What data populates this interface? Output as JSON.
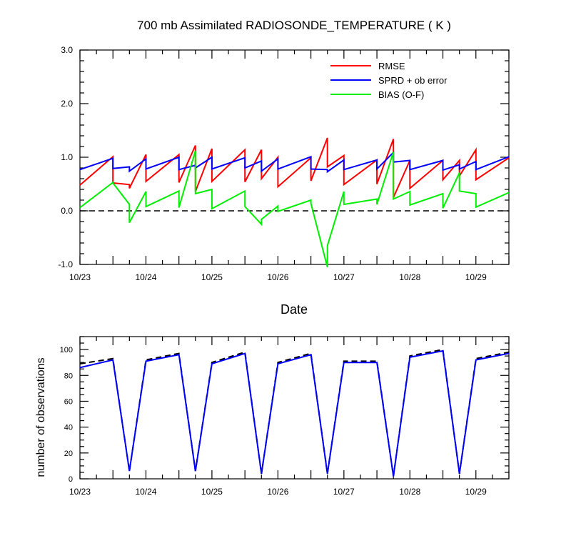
{
  "chart_data": [
    {
      "type": "line",
      "title": "700 mb Assimilated RADIOSONDE_TEMPERATURE ( K )",
      "xlabel": "Date",
      "ylabel": "",
      "xlim": [
        0,
        6.5
      ],
      "ylim": [
        -1.0,
        3.0
      ],
      "yticks": [
        "-1.0",
        "0.0",
        "1.0",
        "2.0",
        "3.0"
      ],
      "ytick_values": [
        -1.0,
        0.0,
        1.0,
        2.0,
        3.0
      ],
      "xtick_labels": [
        "10/23",
        "10/24",
        "10/25",
        "10/26",
        "10/27",
        "10/28",
        "10/29"
      ],
      "xtick_values": [
        0,
        1,
        2,
        3,
        4,
        5,
        6
      ],
      "zero_line": "dashed",
      "legend_position": "top-right",
      "series": [
        {
          "name": "RMSE",
          "color": "#ff0000",
          "x": [
            0,
            0.5,
            0.5,
            0.75,
            0.75,
            1,
            1,
            1.5,
            1.5,
            1.75,
            1.75,
            2,
            2,
            2.5,
            2.5,
            2.75,
            2.75,
            3,
            3,
            3.5,
            3.5,
            3.75,
            3.75,
            4,
            4,
            4.5,
            4.5,
            4.75,
            4.75,
            5,
            5,
            5.5,
            5.5,
            5.75,
            5.75,
            6,
            6,
            6.5
          ],
          "y": [
            0.48,
            1.01,
            0.52,
            0.49,
            0.42,
            1.05,
            0.55,
            1.05,
            0.53,
            1.22,
            0.36,
            1.16,
            0.55,
            1.14,
            0.54,
            1.14,
            0.6,
            1.0,
            0.45,
            0.99,
            0.56,
            1.36,
            0.82,
            1.03,
            0.49,
            0.95,
            0.5,
            1.34,
            0.25,
            0.94,
            0.42,
            0.94,
            0.58,
            0.94,
            0.65,
            1.14,
            0.58,
            0.99
          ]
        },
        {
          "name": "SPRD + ob error",
          "color": "#0000ff",
          "x": [
            0,
            0.5,
            0.5,
            0.75,
            0.75,
            1,
            1,
            1.5,
            1.5,
            1.75,
            1.75,
            2,
            2,
            2.5,
            2.5,
            2.75,
            2.75,
            3,
            3,
            3.5,
            3.5,
            3.75,
            3.75,
            4,
            4,
            4.5,
            4.5,
            4.75,
            4.75,
            5,
            5,
            5.5,
            5.5,
            5.75,
            5.75,
            6,
            6,
            6.5
          ],
          "y": [
            0.77,
            0.98,
            0.79,
            0.82,
            0.74,
            0.97,
            0.78,
            1.0,
            0.77,
            0.85,
            0.8,
            1.0,
            0.78,
            0.99,
            0.8,
            0.93,
            0.74,
            0.97,
            0.78,
            1.01,
            0.78,
            0.77,
            0.73,
            0.95,
            0.77,
            0.95,
            0.78,
            1.09,
            0.91,
            0.94,
            0.77,
            0.94,
            0.76,
            0.86,
            0.78,
            0.92,
            0.77,
            1.01
          ]
        },
        {
          "name": "BIAS (O-F)",
          "color": "#00ee00",
          "x": [
            0,
            0.5,
            0.5,
            0.75,
            0.75,
            1,
            1,
            1.5,
            1.5,
            1.75,
            1.75,
            2,
            2,
            2.5,
            2.5,
            2.75,
            2.75,
            3,
            3,
            3.5,
            3.5,
            3.75,
            3.75,
            4,
            4,
            4.5,
            4.5,
            4.75,
            4.75,
            5,
            5,
            5.5,
            5.5,
            5.75,
            5.75,
            6,
            6,
            6.5
          ],
          "y": [
            0.06,
            0.53,
            0.52,
            0.12,
            -0.22,
            0.36,
            0.08,
            0.37,
            0.06,
            1.12,
            0.32,
            0.4,
            0.04,
            0.37,
            0.08,
            -0.25,
            -0.16,
            0.09,
            -0.01,
            0.2,
            0.14,
            -1.05,
            -0.65,
            0.36,
            0.12,
            0.22,
            0.12,
            1.1,
            0.22,
            0.36,
            0.11,
            0.32,
            0.05,
            0.71,
            0.37,
            0.32,
            0.07,
            0.34
          ]
        }
      ]
    },
    {
      "type": "line",
      "title": "",
      "xlabel": "",
      "ylabel": "number of observations",
      "xlim": [
        0,
        6.5
      ],
      "ylim": [
        0,
        110
      ],
      "yticks": [
        "0",
        "20",
        "40",
        "60",
        "80",
        "100"
      ],
      "ytick_values": [
        0,
        20,
        40,
        60,
        80,
        100
      ],
      "xtick_labels": [
        "10/23",
        "10/24",
        "10/25",
        "10/26",
        "10/27",
        "10/28",
        "10/29"
      ],
      "xtick_values": [
        0,
        1,
        2,
        3,
        4,
        5,
        6
      ],
      "series": [
        {
          "color": "#000000",
          "dash": "dashed",
          "x": [
            0,
            0.5,
            0.75,
            1,
            1.5,
            1.75,
            2,
            2.5,
            2.75,
            3,
            3.5,
            3.75,
            4,
            4.5,
            4.75,
            5,
            5.5,
            5.75,
            6,
            6.5
          ],
          "y": [
            89,
            93,
            6,
            92,
            97,
            6,
            90,
            98,
            4,
            90,
            97,
            4,
            91,
            91,
            2,
            95,
            100,
            4,
            93,
            98
          ]
        },
        {
          "color": "#0000ff",
          "x": [
            0,
            0.5,
            0.75,
            1,
            1.5,
            1.75,
            2,
            2.5,
            2.75,
            3,
            3.5,
            3.75,
            4,
            4.5,
            4.75,
            5,
            5.5,
            5.75,
            6,
            6.5
          ],
          "y": [
            86,
            92,
            6,
            91,
            96,
            6,
            89,
            97,
            4,
            89,
            96,
            4,
            90,
            90,
            2,
            94,
            99,
            4,
            92,
            97
          ]
        }
      ]
    }
  ]
}
